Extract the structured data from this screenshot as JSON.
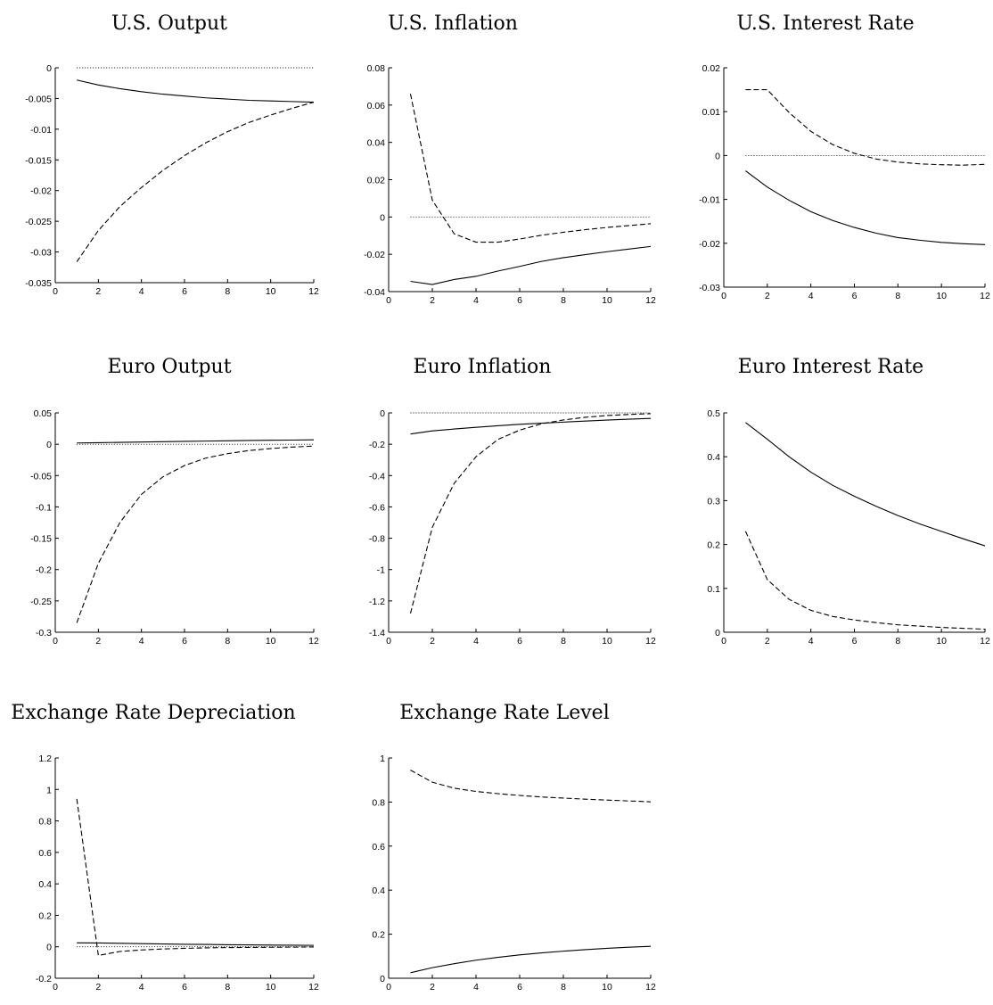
{
  "chart_data": [
    {
      "type": "line",
      "title": "U.S. Output",
      "x": [
        1,
        2,
        3,
        4,
        5,
        6,
        7,
        8,
        9,
        10,
        11,
        12
      ],
      "xlim": [
        0,
        12
      ],
      "xticks": [
        0,
        2,
        4,
        6,
        8,
        10,
        12
      ],
      "ylim": [
        -0.035,
        0
      ],
      "yticks": [
        0,
        -0.005,
        -0.01,
        -0.015,
        -0.02,
        -0.025,
        -0.03,
        -0.035
      ],
      "ytick_labels": [
        "0",
        "-0.005",
        "-0.01",
        "-0.015",
        "-0.02",
        "-0.025",
        "-0.03",
        "-0.035"
      ],
      "series": [
        {
          "style": "solid",
          "values": [
            -0.002,
            -0.0028,
            -0.0034,
            -0.0039,
            -0.0043,
            -0.0046,
            -0.0049,
            -0.0051,
            -0.0053,
            -0.0054,
            -0.0055,
            -0.0056
          ]
        },
        {
          "style": "dashed",
          "values": [
            -0.0316,
            -0.0265,
            -0.0226,
            -0.0195,
            -0.0167,
            -0.0143,
            -0.0122,
            -0.0104,
            -0.0089,
            -0.0077,
            -0.0066,
            -0.0056
          ]
        },
        {
          "style": "dotted",
          "values": [
            0,
            0,
            0,
            0,
            0,
            0,
            0,
            0,
            0,
            0,
            0,
            0
          ]
        }
      ]
    },
    {
      "type": "line",
      "title": "U.S. Inflation",
      "x": [
        1,
        2,
        3,
        4,
        5,
        6,
        7,
        8,
        9,
        10,
        11,
        12
      ],
      "xlim": [
        0,
        12
      ],
      "xticks": [
        0,
        2,
        4,
        6,
        8,
        10,
        12
      ],
      "ylim": [
        -0.04,
        0.08
      ],
      "yticks": [
        0.08,
        0.06,
        0.04,
        0.02,
        0,
        -0.02,
        -0.04
      ],
      "ytick_labels": [
        "0.08",
        "0.06",
        "0.04",
        "0.02",
        "0",
        "-0.02",
        "-0.04"
      ],
      "series": [
        {
          "style": "solid",
          "values": [
            -0.0345,
            -0.0362,
            -0.0335,
            -0.0318,
            -0.029,
            -0.0265,
            -0.0238,
            -0.0218,
            -0.0202,
            -0.0186,
            -0.0172,
            -0.0158
          ]
        },
        {
          "style": "dashed",
          "values": [
            0.066,
            0.009,
            -0.009,
            -0.0135,
            -0.0135,
            -0.0118,
            -0.0098,
            -0.0082,
            -0.0068,
            -0.0056,
            -0.0046,
            -0.0036
          ]
        },
        {
          "style": "dotted",
          "values": [
            0,
            0,
            0,
            0,
            0,
            0,
            0,
            0,
            0,
            0,
            0,
            0
          ]
        }
      ]
    },
    {
      "type": "line",
      "title": "U.S. Interest Rate",
      "x": [
        1,
        2,
        3,
        4,
        5,
        6,
        7,
        8,
        9,
        10,
        11,
        12
      ],
      "xlim": [
        0,
        12
      ],
      "xticks": [
        0,
        2,
        4,
        6,
        8,
        10,
        12
      ],
      "ylim": [
        -0.03,
        0.02
      ],
      "yticks": [
        0.02,
        0.01,
        0,
        -0.01,
        -0.02,
        -0.03
      ],
      "ytick_labels": [
        "0.02",
        "0.01",
        "0",
        "-0.01",
        "-0.02",
        "-0.03"
      ],
      "series": [
        {
          "style": "solid",
          "values": [
            -0.0035,
            -0.0072,
            -0.0102,
            -0.0128,
            -0.0148,
            -0.0164,
            -0.0177,
            -0.0187,
            -0.0193,
            -0.0198,
            -0.0201,
            -0.0203
          ]
        },
        {
          "style": "dashed",
          "values": [
            0.015,
            0.015,
            0.0098,
            0.0055,
            0.0025,
            0.0005,
            -0.0008,
            -0.0015,
            -0.0019,
            -0.0021,
            -0.0022,
            -0.002
          ]
        },
        {
          "style": "dotted",
          "values": [
            0,
            0,
            0,
            0,
            0,
            0,
            0,
            0,
            0,
            0,
            0,
            0
          ]
        }
      ]
    },
    {
      "type": "line",
      "title": "Euro Output",
      "x": [
        1,
        2,
        3,
        4,
        5,
        6,
        7,
        8,
        9,
        10,
        11,
        12
      ],
      "xlim": [
        0,
        12
      ],
      "xticks": [
        0,
        2,
        4,
        6,
        8,
        10,
        12
      ],
      "ylim": [
        -0.3,
        0.05
      ],
      "yticks": [
        0.05,
        0,
        -0.05,
        -0.1,
        -0.15,
        -0.2,
        -0.25,
        -0.3
      ],
      "ytick_labels": [
        "0.05",
        "0",
        "-0.05",
        "-0.1",
        "-0.15",
        "-0.2",
        "-0.25",
        "-0.3"
      ],
      "series": [
        {
          "style": "solid",
          "values": [
            0.002,
            0.0025,
            0.003,
            0.0035,
            0.004,
            0.0045,
            0.005,
            0.0055,
            0.006,
            0.0063,
            0.0066,
            0.007
          ]
        },
        {
          "style": "dashed",
          "values": [
            -0.285,
            -0.19,
            -0.125,
            -0.08,
            -0.052,
            -0.034,
            -0.022,
            -0.015,
            -0.01,
            -0.007,
            -0.0045,
            -0.003
          ]
        },
        {
          "style": "dotted",
          "values": [
            0,
            0,
            0,
            0,
            0,
            0,
            0,
            0,
            0,
            0,
            0,
            0
          ]
        }
      ]
    },
    {
      "type": "line",
      "title": "Euro Inflation",
      "x": [
        1,
        2,
        3,
        4,
        5,
        6,
        7,
        8,
        9,
        10,
        11,
        12
      ],
      "xlim": [
        0,
        12
      ],
      "xticks": [
        0,
        2,
        4,
        6,
        8,
        10,
        12
      ],
      "ylim": [
        -1.4,
        0
      ],
      "yticks": [
        0,
        -0.2,
        -0.4,
        -0.6,
        -0.8,
        -1,
        -1.2,
        -1.4
      ],
      "ytick_labels": [
        "0",
        "-0.2",
        "-0.4",
        "-0.6",
        "-0.8",
        "-1",
        "-1.2",
        "-1.4"
      ],
      "series": [
        {
          "style": "solid",
          "values": [
            -0.135,
            -0.115,
            -0.103,
            -0.092,
            -0.082,
            -0.073,
            -0.066,
            -0.059,
            -0.052,
            -0.046,
            -0.04,
            -0.035
          ]
        },
        {
          "style": "dashed",
          "values": [
            -1.28,
            -0.73,
            -0.45,
            -0.28,
            -0.17,
            -0.11,
            -0.07,
            -0.045,
            -0.028,
            -0.017,
            -0.01,
            -0.005
          ]
        },
        {
          "style": "dotted",
          "values": [
            0,
            0,
            0,
            0,
            0,
            0,
            0,
            0,
            0,
            0,
            0,
            0
          ]
        }
      ]
    },
    {
      "type": "line",
      "title": "Euro Interest Rate",
      "x": [
        1,
        2,
        3,
        4,
        5,
        6,
        7,
        8,
        9,
        10,
        11,
        12
      ],
      "xlim": [
        0,
        12
      ],
      "xticks": [
        0,
        2,
        4,
        6,
        8,
        10,
        12
      ],
      "ylim": [
        0,
        0.5
      ],
      "yticks": [
        0.5,
        0.4,
        0.3,
        0.2,
        0.1,
        0
      ],
      "ytick_labels": [
        "0.5",
        "0.4",
        "0.3",
        "0.2",
        "0.1",
        "0"
      ],
      "series": [
        {
          "style": "solid",
          "values": [
            0.478,
            0.44,
            0.4,
            0.365,
            0.335,
            0.31,
            0.287,
            0.266,
            0.247,
            0.23,
            0.213,
            0.197
          ]
        },
        {
          "style": "dashed",
          "values": [
            0.23,
            0.12,
            0.075,
            0.05,
            0.036,
            0.028,
            0.022,
            0.017,
            0.014,
            0.011,
            0.009,
            0.007
          ]
        },
        {
          "style": "dotted",
          "values": [
            0,
            0,
            0,
            0,
            0,
            0,
            0,
            0,
            0,
            0,
            0,
            0
          ]
        }
      ]
    },
    {
      "type": "line",
      "title": "Exchange Rate Depreciation",
      "x": [
        1,
        2,
        3,
        4,
        5,
        6,
        7,
        8,
        9,
        10,
        11,
        12
      ],
      "xlim": [
        0,
        12
      ],
      "xticks": [
        0,
        2,
        4,
        6,
        8,
        10,
        12
      ],
      "ylim": [
        -0.2,
        1.2
      ],
      "yticks": [
        1.2,
        1,
        0.8,
        0.6,
        0.4,
        0.2,
        0,
        -0.2
      ],
      "ytick_labels": [
        "1.2",
        "1",
        "0.8",
        "0.6",
        "0.4",
        "0.2",
        "0",
        "-0.2"
      ],
      "series": [
        {
          "style": "solid",
          "values": [
            0.025,
            0.024,
            0.022,
            0.02,
            0.018,
            0.016,
            0.015,
            0.013,
            0.012,
            0.011,
            0.01,
            0.009
          ]
        },
        {
          "style": "dashed",
          "values": [
            0.94,
            -0.055,
            -0.03,
            -0.02,
            -0.014,
            -0.01,
            -0.007,
            -0.005,
            -0.004,
            -0.003,
            -0.002,
            -0.001
          ]
        },
        {
          "style": "dotted",
          "values": [
            0,
            0,
            0,
            0,
            0,
            0,
            0,
            0,
            0,
            0,
            0,
            0
          ]
        }
      ]
    },
    {
      "type": "line",
      "title": "Exchange Rate Level",
      "x": [
        1,
        2,
        3,
        4,
        5,
        6,
        7,
        8,
        9,
        10,
        11,
        12
      ],
      "xlim": [
        0,
        12
      ],
      "xticks": [
        0,
        2,
        4,
        6,
        8,
        10,
        12
      ],
      "ylim": [
        0,
        1
      ],
      "yticks": [
        1,
        0.8,
        0.6,
        0.4,
        0.2,
        0
      ],
      "ytick_labels": [
        "1",
        "0.8",
        "0.6",
        "0.4",
        "0.2",
        "0"
      ],
      "series": [
        {
          "style": "solid",
          "values": [
            0.025,
            0.048,
            0.066,
            0.082,
            0.095,
            0.106,
            0.115,
            0.123,
            0.13,
            0.136,
            0.141,
            0.145
          ]
        },
        {
          "style": "dashed",
          "values": [
            0.945,
            0.89,
            0.863,
            0.848,
            0.838,
            0.83,
            0.823,
            0.818,
            0.813,
            0.809,
            0.805,
            0.801
          ]
        }
      ]
    }
  ]
}
